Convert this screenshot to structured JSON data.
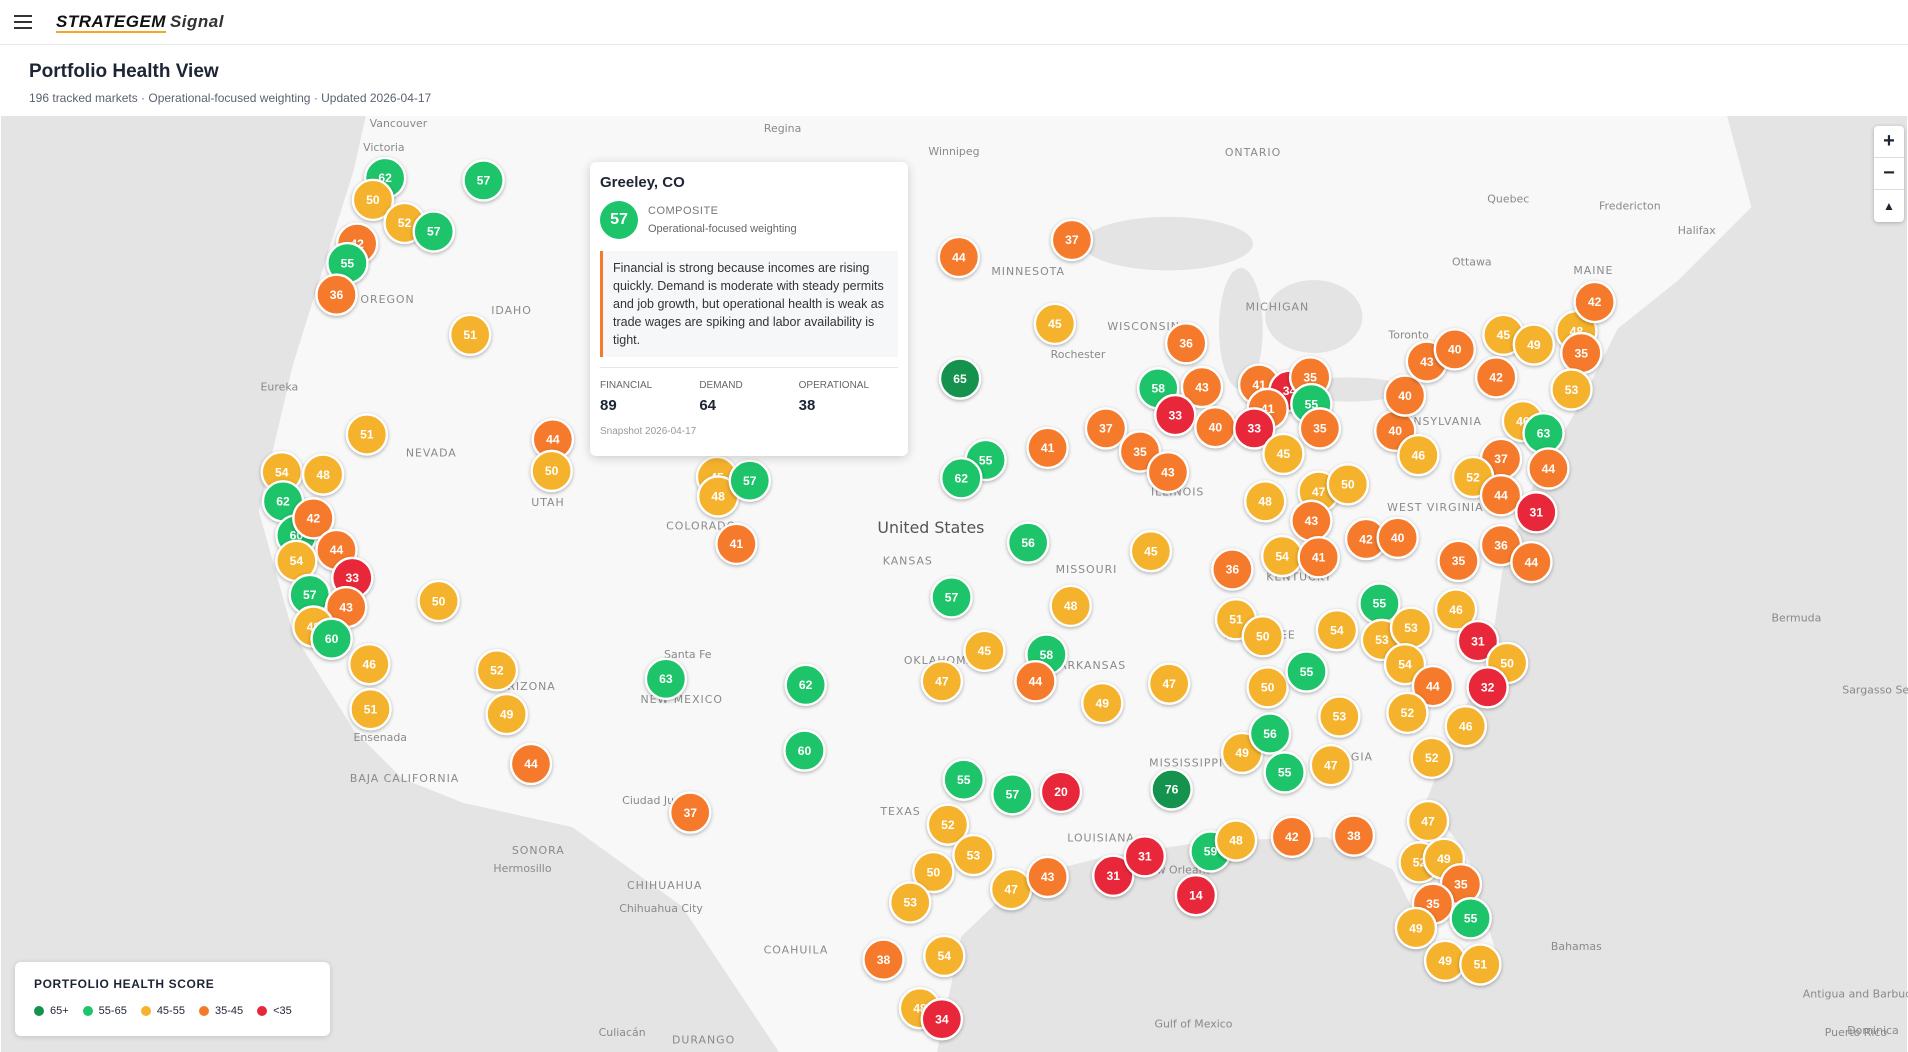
{
  "header": {
    "brand": "STRATEGEM",
    "brand_suffix": "Signal"
  },
  "page": {
    "title": "Portfolio Health View",
    "subtitle": "196 tracked markets · Operational-focused weighting · Updated 2026-04-17"
  },
  "tooltip": {
    "title": "Greeley, CO",
    "score": 57,
    "score_label": "COMPOSITE",
    "weighting": "Operational-focused weighting",
    "summary": "Financial is strong because incomes are rising quickly. Demand is moderate with steady permits and job growth, but operational health is weak as trade wages are spiking and labor availability is tight.",
    "metrics": [
      {
        "label": "FINANCIAL",
        "value": 89
      },
      {
        "label": "DEMAND",
        "value": 64
      },
      {
        "label": "OPERATIONAL",
        "value": 38
      }
    ],
    "snapshot": "Snapshot 2026-04-17"
  },
  "legend": {
    "title": "PORTFOLIO HEALTH SCORE",
    "items": [
      {
        "value": 65,
        "label": "65+",
        "color": "#14924e"
      },
      {
        "value": 55,
        "label": "55-65",
        "color": "#1ec46a"
      },
      {
        "value": 45,
        "label": "45-55",
        "color": "#f5b22c"
      },
      {
        "value": 35,
        "label": "35-45",
        "color": "#f57a2c"
      },
      {
        "label": "<35",
        "color": "#e8283a"
      }
    ]
  },
  "controls": {
    "zoom_in": "+",
    "zoom_out": "−",
    "compass": "▲"
  },
  "map_labels": [
    "Vancouver",
    "Victoria",
    "Regina",
    "Winnipeg",
    "ONTARIO",
    "Quebec",
    "Fredericton",
    "Halifax",
    "MAINE",
    "Ottawa",
    "Toronto",
    "MINNESOTA",
    "WISCONSIN",
    "MICHIGAN",
    "Rochester",
    "OREGON",
    "IDAHO",
    "NEVADA",
    "UTAH",
    "Eureka",
    "COLORADO",
    "KANSAS",
    "MISSOURI",
    "ILLINOIS",
    "KENTUCKY",
    "PENNSYLVANIA",
    "WEST VIRGINIA",
    "ARIZONA",
    "NEW MEXICO",
    "Santa Fe",
    "OKLAHOMA",
    "ARKANSAS",
    "TEXAS",
    "LOUISIANA",
    "MISSISSIPPI",
    "GEORGIA",
    "TENNESSEE",
    "United States",
    "Ensenada",
    "BAJA CALIFORNIA",
    "SONORA",
    "Hermosillo",
    "CHIHUAHUA",
    "Chihuahua City",
    "Ciudad Juárez",
    "COAHUILA",
    "DURANGO",
    "Culiacán",
    "Gulf of Mexico",
    "Bermuda",
    "Sargasso Sea",
    "Bahamas",
    "Antigua and Barbuda",
    "Dominica",
    "Puerto Rico",
    "New Orleans"
  ],
  "markers": [
    62,
    57,
    50,
    52,
    57,
    42,
    55,
    36,
    51,
    51,
    54,
    48,
    62,
    60,
    42,
    44,
    54,
    33,
    57,
    43,
    48,
    60,
    46,
    51,
    50,
    52,
    49,
    44,
    37,
    44,
    50,
    63,
    62,
    60,
    45,
    48,
    57,
    41,
    44,
    37,
    45,
    65,
    55,
    62,
    56,
    57,
    48,
    45,
    58,
    44,
    47,
    49,
    47,
    55,
    57,
    20,
    76,
    52,
    53,
    50,
    53,
    47,
    43,
    31,
    31,
    14,
    38,
    54,
    48,
    34,
    37,
    35,
    41,
    43,
    45,
    36,
    58,
    43,
    33,
    40,
    41,
    34,
    35,
    41,
    55,
    33,
    35,
    40,
    40,
    46,
    45,
    47,
    50,
    48,
    43,
    42,
    40,
    36,
    54,
    41,
    43,
    40,
    45,
    49,
    48,
    42,
    35,
    42,
    53,
    46,
    63,
    37,
    52,
    44,
    44,
    31,
    36,
    44,
    35,
    55,
    51,
    50,
    54,
    53,
    53,
    46,
    31,
    50,
    54,
    44,
    32,
    50,
    55,
    53,
    52,
    46,
    52,
    49,
    56,
    55,
    47,
    38,
    42,
    59,
    48,
    47,
    52,
    49,
    35,
    35,
    55,
    49,
    49,
    51
  ]
}
